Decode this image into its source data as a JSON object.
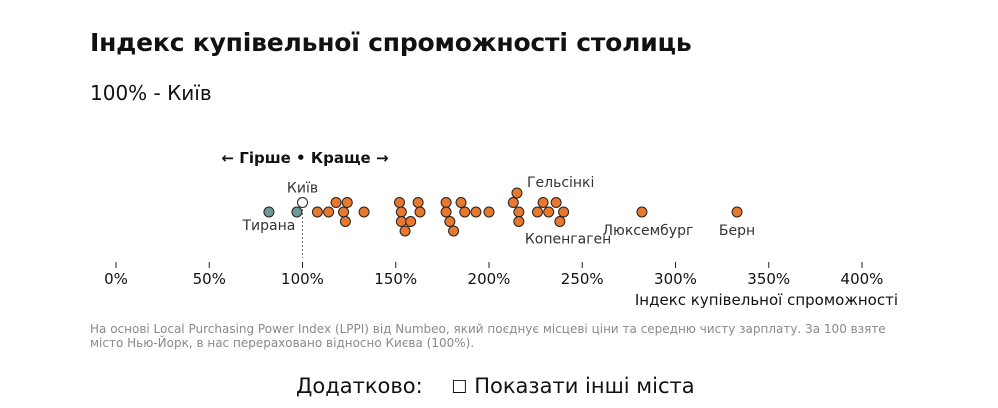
{
  "title": "Індекс купівельної спроможності столиць",
  "subtitle": "100% - Київ",
  "direction_label": "← Гірше • Краще →",
  "note": "На основі Local Purchasing Power Index (LPPI) від Numbeo, який поєднує місцеві ціни та середню чисту зарплату. За 100 взяте місто Нью-Йорк, в нас перераховано відносно Києва (100%).",
  "extra": {
    "label": "Додатково:",
    "checkbox_glyph": "☐",
    "checkbox_label": "Показати інші міста"
  },
  "colors": {
    "worse": "#6f9a9c",
    "better": "#e8782e",
    "reference": "#ffffff",
    "text": "#111111",
    "label": "#333333"
  },
  "chart_data": {
    "type": "scatter",
    "xlabel": "Індекс купівельної спроможності",
    "xlim": [
      0,
      400
    ],
    "xticks": [
      0,
      50,
      100,
      150,
      200,
      250,
      300,
      350,
      400
    ],
    "xtick_labels": [
      "0%",
      "50%",
      "100%",
      "150%",
      "200%",
      "250%",
      "300%",
      "350%",
      "400%"
    ],
    "reference_line": 100,
    "points": [
      {
        "x": 82,
        "row": 0,
        "group": "worse",
        "label": "Тирана"
      },
      {
        "x": 97,
        "row": 0,
        "group": "worse"
      },
      {
        "x": 100,
        "row": 1,
        "group": "reference",
        "label": "Київ"
      },
      {
        "x": 108,
        "row": 0,
        "group": "better"
      },
      {
        "x": 114,
        "row": 0,
        "group": "better"
      },
      {
        "x": 118,
        "row": 1,
        "group": "better"
      },
      {
        "x": 122,
        "row": 0,
        "group": "better"
      },
      {
        "x": 124,
        "row": 1,
        "group": "better"
      },
      {
        "x": 123,
        "row": -1,
        "group": "better"
      },
      {
        "x": 133,
        "row": 0,
        "group": "better"
      },
      {
        "x": 152,
        "row": 1,
        "group": "better"
      },
      {
        "x": 153,
        "row": 0,
        "group": "better"
      },
      {
        "x": 153,
        "row": -1,
        "group": "better"
      },
      {
        "x": 155,
        "row": -2,
        "group": "better"
      },
      {
        "x": 158,
        "row": -1,
        "group": "better"
      },
      {
        "x": 162,
        "row": 1,
        "group": "better"
      },
      {
        "x": 163,
        "row": 0,
        "group": "better"
      },
      {
        "x": 177,
        "row": 1,
        "group": "better"
      },
      {
        "x": 177,
        "row": 0,
        "group": "better"
      },
      {
        "x": 179,
        "row": -1,
        "group": "better"
      },
      {
        "x": 181,
        "row": -2,
        "group": "better"
      },
      {
        "x": 185,
        "row": 1,
        "group": "better"
      },
      {
        "x": 187,
        "row": 0,
        "group": "better"
      },
      {
        "x": 193,
        "row": 0,
        "group": "better"
      },
      {
        "x": 200,
        "row": 0,
        "group": "better"
      },
      {
        "x": 213,
        "row": 1,
        "group": "better"
      },
      {
        "x": 215,
        "row": 2,
        "group": "better",
        "label": "Гельсінкі"
      },
      {
        "x": 216,
        "row": 0,
        "group": "better"
      },
      {
        "x": 216,
        "row": -1,
        "group": "better",
        "label": "Копенгаген"
      },
      {
        "x": 226,
        "row": 0,
        "group": "better"
      },
      {
        "x": 229,
        "row": 1,
        "group": "better"
      },
      {
        "x": 232,
        "row": 0,
        "group": "better"
      },
      {
        "x": 236,
        "row": 1,
        "group": "better"
      },
      {
        "x": 238,
        "row": -1,
        "group": "better"
      },
      {
        "x": 240,
        "row": 0,
        "group": "better"
      },
      {
        "x": 282,
        "row": 0,
        "group": "better",
        "label": "Люксембург"
      },
      {
        "x": 333,
        "row": 0,
        "group": "better",
        "label": "Берн"
      }
    ]
  }
}
